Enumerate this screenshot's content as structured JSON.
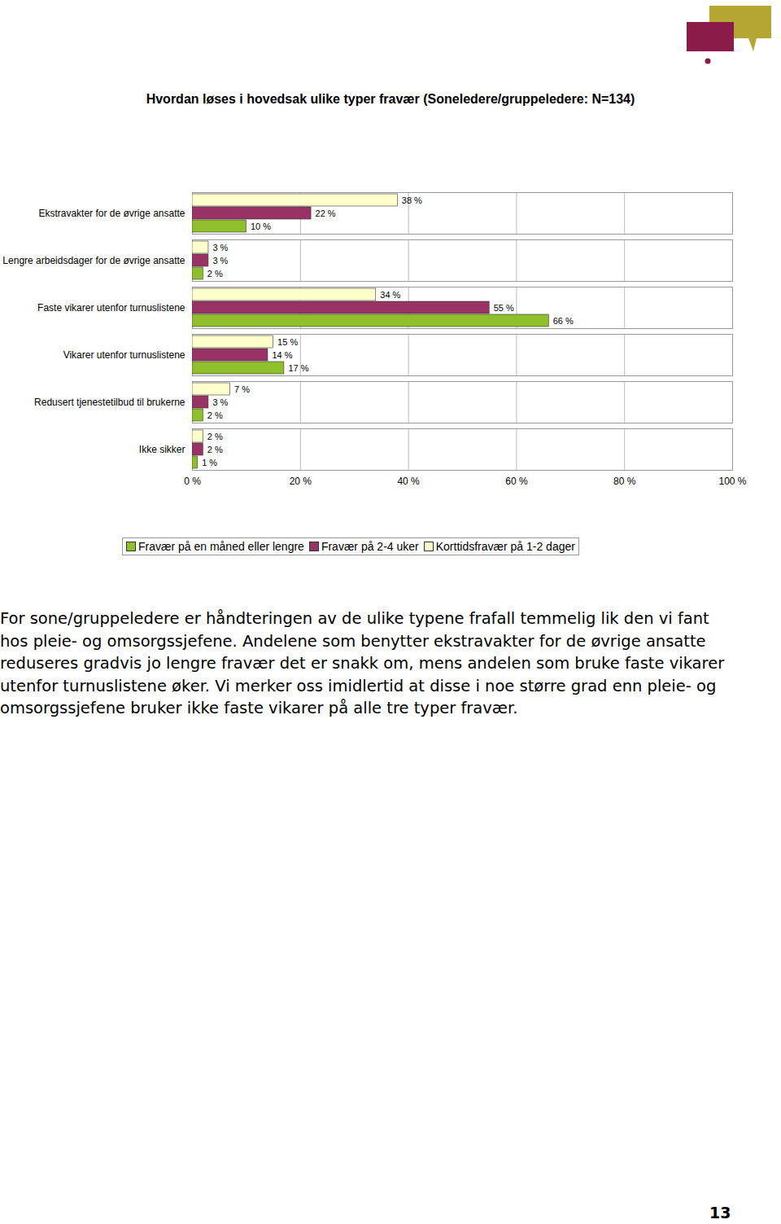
{
  "chart_data": {
    "type": "bar",
    "title": "Hvordan løses i hovedsak ulike typer fravær (Soneledere/gruppeledere: N=134)",
    "orientation": "horizontal",
    "categories": [
      "Ekstravakter for de øvrige ansatte",
      "Lengre arbeidsdager for de øvrige ansatte",
      "Faste vikarer utenfor turnuslistene",
      "Vikarer utenfor turnuslistene",
      "Redusert tjenestetilbud til brukerne",
      "Ikke sikker"
    ],
    "series": [
      {
        "name": "Fravær på en måned eller lengre",
        "color": "#8fbf2a",
        "values": [
          10,
          2,
          66,
          17,
          2,
          1
        ],
        "value_labels": [
          "10 %",
          "2 %",
          "66 %",
          "17 %",
          "2 %",
          "1 %"
        ]
      },
      {
        "name": "Fravær på 2-4 uker",
        "color": "#993366",
        "values": [
          22,
          3,
          55,
          14,
          3,
          2
        ],
        "value_labels": [
          "22 %",
          "3 %",
          "55 %",
          "14 %",
          "3 %",
          "2 %"
        ]
      },
      {
        "name": "Korttidsfravær på 1-2 dager",
        "color": "#ffffcc",
        "values": [
          38,
          3,
          34,
          15,
          7,
          2
        ],
        "value_labels": [
          "38 %",
          "3 %",
          "34 %",
          "15 %",
          "7 %",
          "2 %"
        ]
      }
    ],
    "xlim": [
      0,
      100
    ],
    "xticks": [
      {
        "value": 0,
        "label": "0 %"
      },
      {
        "value": 20,
        "label": "20 %"
      },
      {
        "value": 40,
        "label": "40 %"
      },
      {
        "value": 60,
        "label": "60 %"
      },
      {
        "value": 80,
        "label": "80 %"
      },
      {
        "value": 100,
        "label": "100 %"
      }
    ],
    "grid": true,
    "data_labels": true,
    "legend": "bottom"
  },
  "text": {
    "paragraph": "For sone/gruppeledere er håndteringen av de ulike typene frafall temmelig lik den vi fant hos pleie- og omsorgssjefene. Andelene som benytter ekstravakter for de øvrige ansatte reduseres gradvis jo lengre fravær det er snakk om, mens andelen som bruke faste vikarer utenfor turnuslistene øker. Vi merker oss imidlertid at disse i noe større grad enn pleie- og omsorgssjefene bruker ikke faste vikarer på alle tre typer fravær.",
    "page_number": 13
  }
}
